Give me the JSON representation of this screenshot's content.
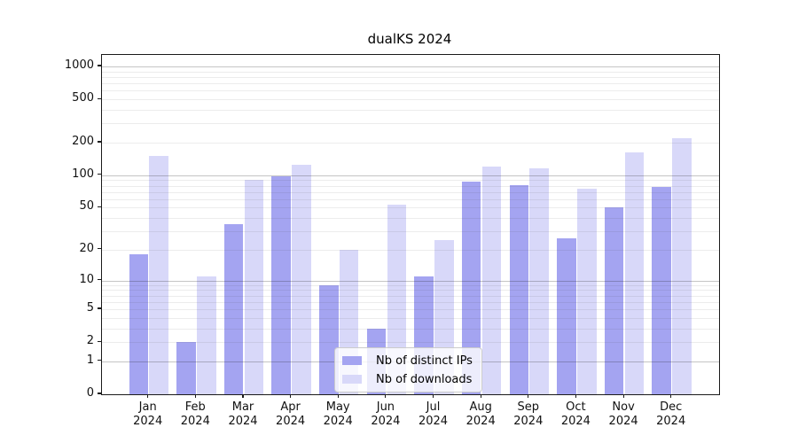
{
  "title": "dualKS 2024",
  "chart_data": {
    "type": "bar",
    "title": "dualKS 2024",
    "categories": [
      "Jan 2024",
      "Feb 2024",
      "Mar 2024",
      "Apr 2024",
      "May 2024",
      "Jun 2024",
      "Jul 2024",
      "Aug 2024",
      "Sep 2024",
      "Oct 2024",
      "Nov 2024",
      "Dec 2024"
    ],
    "series": [
      {
        "name": "Nb of distinct IPs",
        "color": "#a4a4f1",
        "values": [
          18,
          2,
          35,
          98,
          9,
          3,
          11,
          87,
          81,
          26,
          50,
          78
        ]
      },
      {
        "name": "Nb of downloads",
        "color": "#d8d8f9",
        "values": [
          150,
          11,
          90,
          125,
          20,
          53,
          25,
          121,
          115,
          75,
          164,
          220
        ]
      }
    ],
    "xlabel": "",
    "ylabel": "",
    "yscale": "log1p",
    "ylim": [
      0,
      1350
    ],
    "yticks": [
      0,
      1,
      2,
      5,
      10,
      20,
      50,
      100,
      200,
      500,
      1000
    ],
    "grid": {
      "major_lines_at": [
        1,
        10,
        100,
        1000
      ],
      "minor_lines": "2-9 per decade",
      "orientation": "horizontal"
    },
    "legend_position": "lower center inside plot",
    "axis_color": "#1a1a1a"
  }
}
